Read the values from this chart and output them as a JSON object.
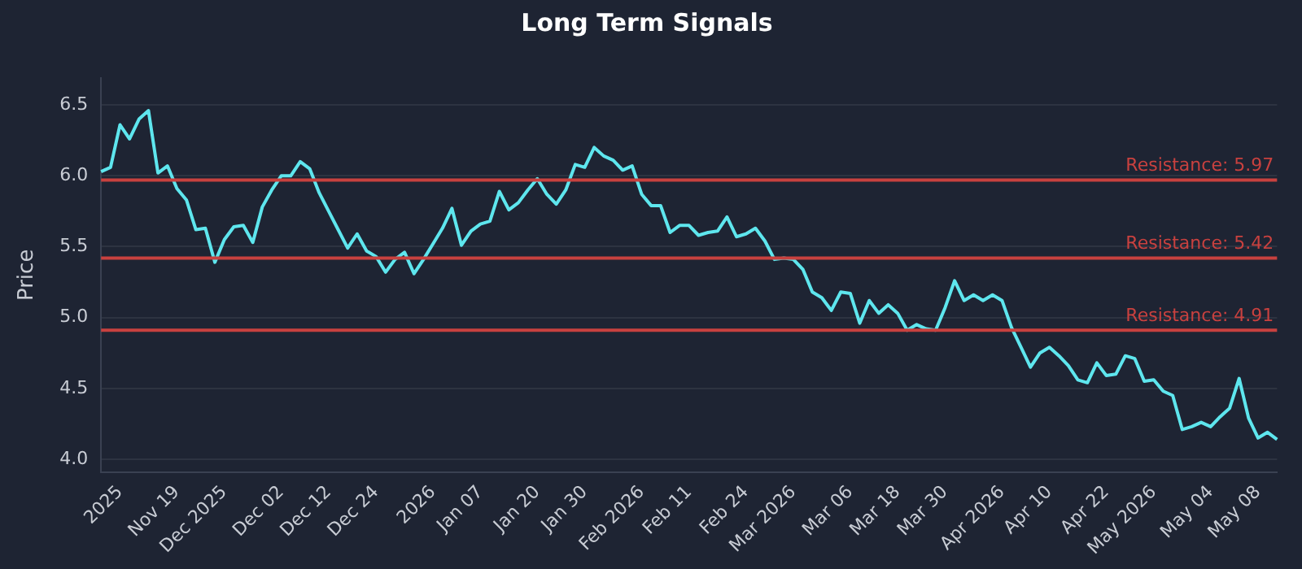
{
  "chart_data": {
    "type": "line",
    "title": "Long Term Signals",
    "ylabel": "Price",
    "categories": [
      null,
      null,
      "2025",
      null,
      null,
      null,
      null,
      null,
      "Nov 19",
      null,
      null,
      null,
      null,
      "Dec 2025",
      null,
      null,
      null,
      null,
      null,
      "Dec 02",
      null,
      null,
      null,
      null,
      "Dec 12",
      null,
      null,
      null,
      null,
      "Dec 24",
      null,
      null,
      null,
      null,
      null,
      "2026",
      null,
      null,
      null,
      null,
      "Jan 07",
      null,
      null,
      null,
      null,
      null,
      "Jan 20",
      null,
      null,
      null,
      null,
      "Jan 30",
      null,
      null,
      null,
      null,
      null,
      "Feb 2026",
      null,
      null,
      null,
      null,
      "Feb 11",
      null,
      null,
      null,
      null,
      null,
      "Feb 24",
      null,
      null,
      null,
      null,
      "Mar 2026",
      null,
      null,
      null,
      null,
      null,
      "Mar 06",
      null,
      null,
      null,
      null,
      "Mar 18",
      null,
      null,
      null,
      null,
      "Mar 30",
      null,
      null,
      null,
      null,
      null,
      "Apr 2026",
      null,
      null,
      null,
      null,
      "Apr 10",
      null,
      null,
      null,
      null,
      null,
      "Apr 22",
      null,
      null,
      null,
      null,
      "May 2026",
      null,
      null,
      null,
      null,
      null,
      "May 04",
      null,
      null,
      null,
      null,
      "May 08",
      null,
      null
    ],
    "series": [
      {
        "color": "#5ee6ee",
        "values": [
          6.03,
          6.06,
          6.36,
          6.26,
          6.4,
          6.46,
          6.02,
          6.07,
          5.91,
          5.83,
          5.62,
          5.63,
          5.39,
          5.55,
          5.64,
          5.65,
          5.53,
          5.78,
          5.9,
          6.0,
          6.0,
          6.1,
          6.05,
          5.88,
          5.75,
          5.62,
          5.49,
          5.59,
          5.47,
          5.43,
          5.32,
          5.41,
          5.46,
          5.31,
          5.41,
          5.52,
          5.63,
          5.77,
          5.51,
          5.61,
          5.66,
          5.68,
          5.89,
          5.76,
          5.81,
          5.9,
          5.98,
          5.87,
          5.8,
          5.9,
          6.08,
          6.06,
          6.2,
          6.14,
          6.11,
          6.04,
          6.07,
          5.87,
          5.79,
          5.79,
          5.6,
          5.65,
          5.65,
          5.58,
          5.6,
          5.61,
          5.71,
          5.57,
          5.59,
          5.63,
          5.54,
          5.41,
          5.42,
          5.41,
          5.34,
          5.18,
          5.14,
          5.05,
          5.18,
          5.17,
          4.96,
          5.12,
          5.03,
          5.09,
          5.03,
          4.91,
          4.95,
          4.92,
          4.91,
          5.07,
          5.26,
          5.12,
          5.16,
          5.12,
          5.16,
          5.12,
          4.93,
          4.79,
          4.65,
          4.75,
          4.79,
          4.73,
          4.66,
          4.56,
          4.54,
          4.68,
          4.59,
          4.6,
          4.73,
          4.71,
          4.55,
          4.56,
          4.48,
          4.45,
          4.21,
          4.23,
          4.26,
          4.23,
          4.3,
          4.36,
          4.57,
          4.29,
          4.15,
          4.19,
          4.14
        ]
      }
    ],
    "ylim": [
      3.91,
      6.69
    ],
    "yticks": [
      {
        "value": 4,
        "label": "4.0"
      },
      4.5,
      {
        "value": 5,
        "label": "5.0"
      },
      5.5,
      {
        "value": 6,
        "label": "6.0"
      },
      6.5
    ],
    "grid": "y",
    "marker": "none",
    "line_style": "solid",
    "legend": false,
    "ref_lines": [
      {
        "axis": "y",
        "value": 5.97,
        "label": "Resistance: 5.97",
        "color": "#c8413f"
      },
      {
        "axis": "y",
        "value": 5.42,
        "label": "Resistance: 5.42",
        "color": "#c8413f"
      },
      {
        "axis": "y",
        "value": 4.91,
        "label": "Resistance: 4.91",
        "color": "#c8413f"
      }
    ]
  }
}
